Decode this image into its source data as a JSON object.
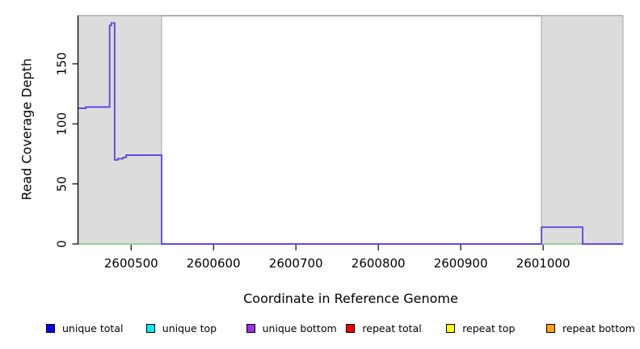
{
  "chart_data": {
    "type": "line",
    "title": "",
    "xlabel": "Coordinate in Reference Genome",
    "ylabel": "Read Coverage Depth",
    "xlim": [
      2600436,
      2601097
    ],
    "ylim": [
      0,
      190
    ],
    "grid": false,
    "legend_position": "bottom",
    "x_ticks": [
      {
        "value": 2600500,
        "label": "2600500"
      },
      {
        "value": 2600600,
        "label": "2600600"
      },
      {
        "value": 2600700,
        "label": "2600700"
      },
      {
        "value": 2600800,
        "label": "2600800"
      },
      {
        "value": 2600900,
        "label": "2600900"
      },
      {
        "value": 2601000,
        "label": "2601000"
      }
    ],
    "y_ticks": [
      {
        "value": 0,
        "label": "0"
      },
      {
        "value": 50,
        "label": "50"
      },
      {
        "value": 100,
        "label": "100"
      },
      {
        "value": 150,
        "label": "150"
      }
    ],
    "shaded_regions": [
      {
        "name": "repeat-region-left",
        "x0": 2600436,
        "x1": 2600537,
        "fill": "#dcdcdc",
        "stroke": "#a6a6a6"
      },
      {
        "name": "repeat-region-right",
        "x0": 2600998,
        "x1": 2601097,
        "fill": "#dcdcdc",
        "stroke": "#a6a6a6"
      }
    ],
    "top_border_color": "#8f8f8f",
    "axis_color": "#000000",
    "series": [
      {
        "name": "zero-baseline",
        "color": "#7cc87c",
        "width": 1.5,
        "points": [
          [
            2600436,
            0
          ],
          [
            2601097,
            0
          ]
        ]
      },
      {
        "name": "unique bottom",
        "color": "#6747e0",
        "width": 1.9,
        "points": [
          [
            2600436,
            113
          ],
          [
            2600445,
            113
          ],
          [
            2600445,
            114
          ],
          [
            2600474,
            114
          ],
          [
            2600474,
            182
          ],
          [
            2600476,
            182
          ],
          [
            2600476,
            184
          ],
          [
            2600480,
            184
          ],
          [
            2600480,
            70
          ],
          [
            2600484,
            70
          ],
          [
            2600484,
            71
          ],
          [
            2600490,
            71
          ],
          [
            2600490,
            72
          ],
          [
            2600494,
            72
          ],
          [
            2600494,
            74
          ],
          [
            2600537,
            74
          ],
          [
            2600537,
            0
          ],
          [
            2600998,
            0
          ],
          [
            2600998,
            14
          ],
          [
            2601048,
            14
          ],
          [
            2601048,
            0
          ],
          [
            2601097,
            0
          ]
        ]
      }
    ],
    "legend": [
      {
        "label": "unique total",
        "color": "#0000ee"
      },
      {
        "label": "unique top",
        "color": "#00eeee"
      },
      {
        "label": "unique bottom",
        "color": "#9933e6"
      },
      {
        "label": "repeat total",
        "color": "#ee0000"
      },
      {
        "label": "repeat top",
        "color": "#ffff00"
      },
      {
        "label": "repeat bottom",
        "color": "#ffa500"
      }
    ]
  }
}
